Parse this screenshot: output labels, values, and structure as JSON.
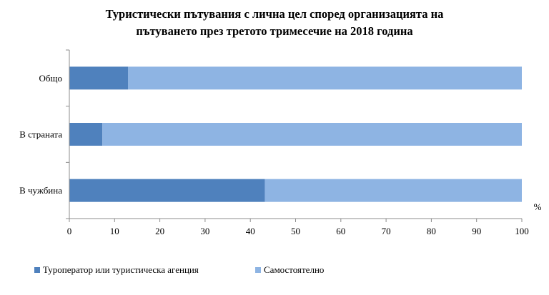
{
  "chart_data": {
    "type": "bar",
    "orientation": "horizontal",
    "stacked": true,
    "title_lines": [
      "Туристически пътувания с лична цел според организацията на",
      "пътуването през третото тримесечие на 2018 година"
    ],
    "categories": [
      "Общо",
      "В страната",
      "В чужбина"
    ],
    "series": [
      {
        "name": "Туроператор или туристическа агенция",
        "values": [
          13,
          7.3,
          43.2
        ],
        "color": "#4F81BD"
      },
      {
        "name": "Самостоятелно",
        "values": [
          87,
          92.7,
          56.8
        ],
        "color": "#8EB4E3"
      }
    ],
    "xlim": [
      0,
      100
    ],
    "xticks": [
      "0",
      "10",
      "20",
      "30",
      "40",
      "50",
      "60",
      "70",
      "80",
      "90",
      "100"
    ],
    "xunit": "%",
    "grid": false,
    "legend_position": "bottom"
  }
}
